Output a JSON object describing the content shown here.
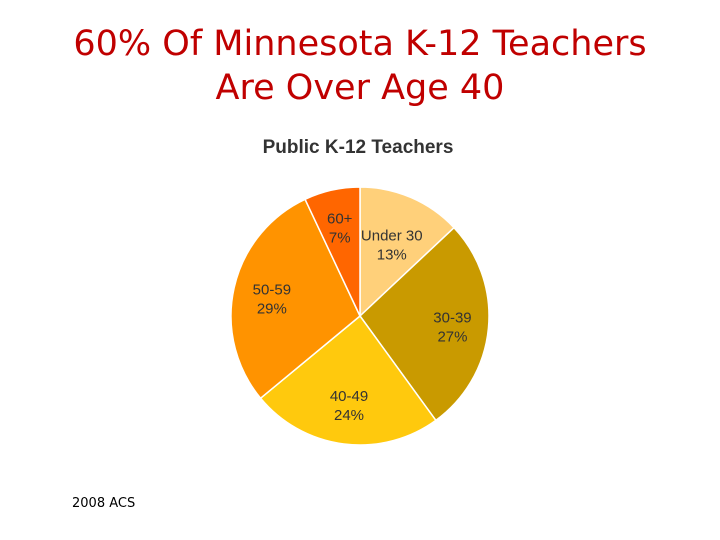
{
  "title": {
    "line1": "60% Of Minnesota K-12 Teachers",
    "line2": "Are Over Age 40"
  },
  "source": "2008 ACS",
  "colors": {
    "title": "#c00000",
    "slice_border": "#ffffff"
  },
  "chart_data": {
    "type": "pie",
    "title": "Public K-12 Teachers",
    "slices": [
      {
        "label": "Under 30",
        "value": 13,
        "display": "13%",
        "color": "#ffd07a"
      },
      {
        "label": "30-39",
        "value": 27,
        "display": "27%",
        "color": "#c99a00"
      },
      {
        "label": "40-49",
        "value": 24,
        "display": "24%",
        "color": "#ffc90d"
      },
      {
        "label": "50-59",
        "value": 29,
        "display": "29%",
        "color": "#ff9300"
      },
      {
        "label": "60+",
        "value": 7,
        "display": "7%",
        "color": "#ff6600"
      }
    ],
    "legend": "none",
    "labels_position": "inside"
  }
}
